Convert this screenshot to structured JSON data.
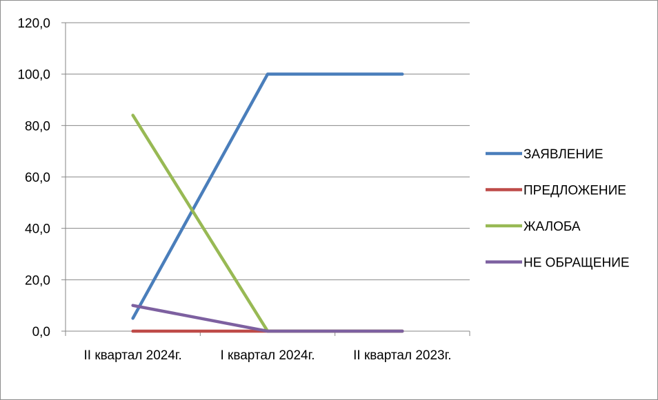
{
  "chart_data": {
    "type": "line",
    "categories": [
      "II квартал 2024г.",
      "I квартал 2024г.",
      "II квартал 2023г."
    ],
    "ylim": [
      0,
      120
    ],
    "yticks": [
      0,
      20,
      40,
      60,
      80,
      100,
      120
    ],
    "ytick_labels": [
      "0,0",
      "20,0",
      "40,0",
      "60,0",
      "80,0",
      "100,0",
      "120,0"
    ],
    "grid": true,
    "legend_position": "right",
    "series": [
      {
        "name": "ЗАЯВЛЕНИЕ",
        "color": "#4a7ebb",
        "values": [
          5,
          100,
          100
        ]
      },
      {
        "name": "ПРЕДЛОЖЕНИЕ",
        "color": "#be4b48",
        "values": [
          0,
          0,
          0
        ]
      },
      {
        "name": "ЖАЛОБА",
        "color": "#98b954",
        "values": [
          84,
          0,
          0
        ]
      },
      {
        "name": "НЕ ОБРАЩЕНИЕ",
        "color": "#7d60a0",
        "values": [
          10,
          0,
          0
        ]
      }
    ]
  }
}
